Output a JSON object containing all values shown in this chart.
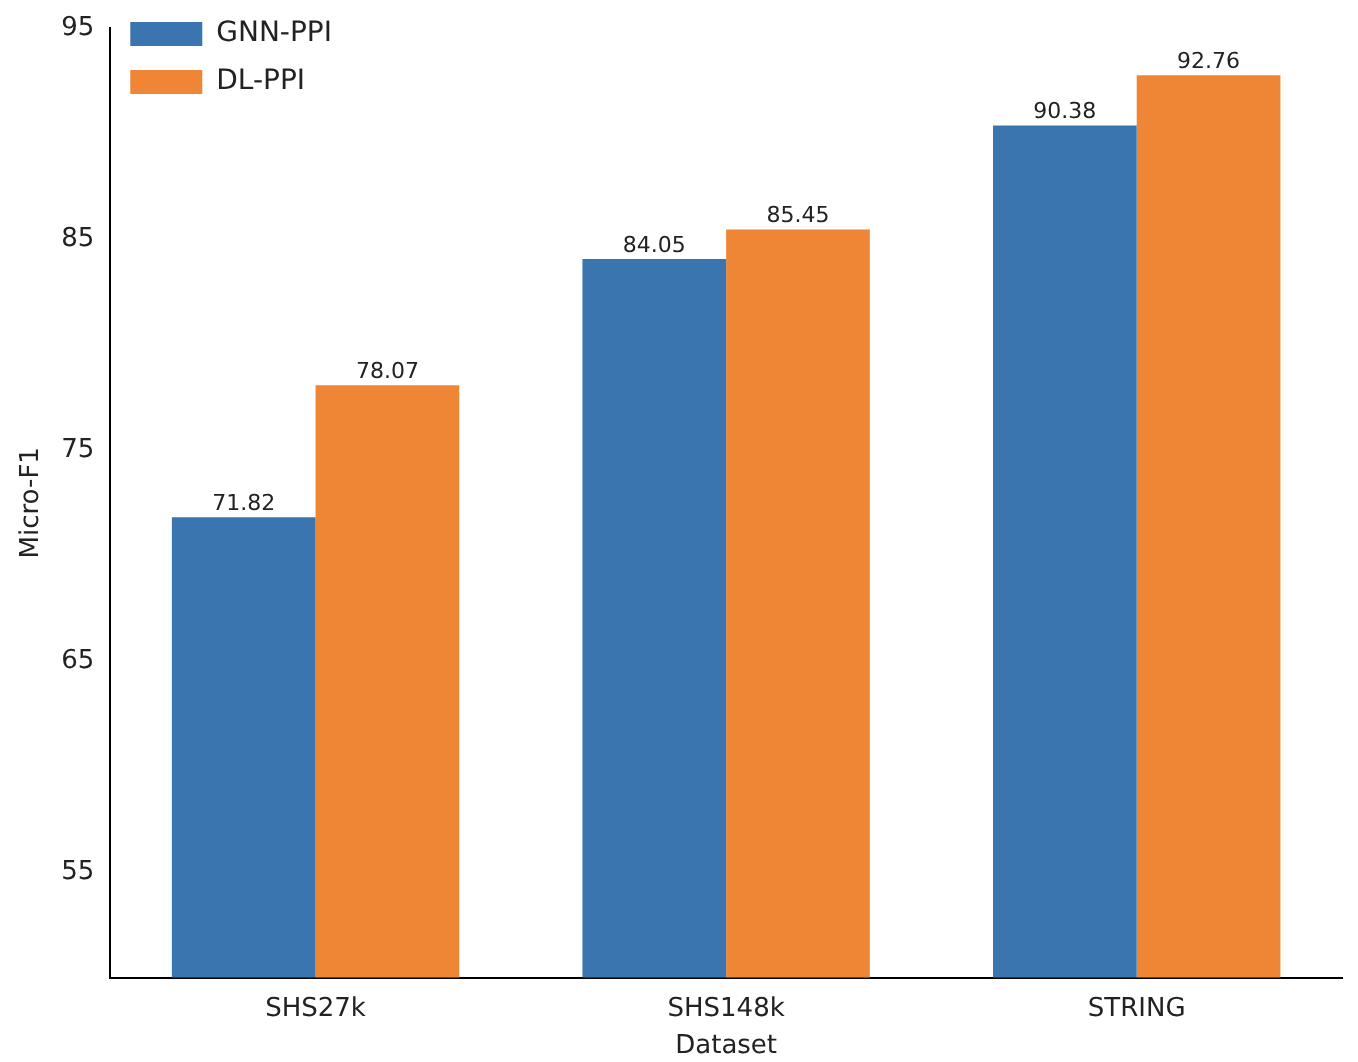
{
  "chart_data": {
    "type": "bar",
    "xlabel": "Dataset",
    "ylabel": "Micro-F1",
    "categories": [
      "SHS27k",
      "SHS148k",
      "STRING"
    ],
    "series": [
      {
        "name": "GNN-PPI",
        "color": "#3a75b0",
        "values": [
          71.82,
          84.05,
          90.38
        ]
      },
      {
        "name": "DL-PPI",
        "color": "#ef8636",
        "values": [
          78.07,
          85.45,
          92.76
        ]
      }
    ],
    "ylim": [
      50,
      95
    ],
    "yticks": [
      55,
      65,
      75,
      85,
      95
    ],
    "grid": false,
    "legend": "top left",
    "data_labels": true
  }
}
